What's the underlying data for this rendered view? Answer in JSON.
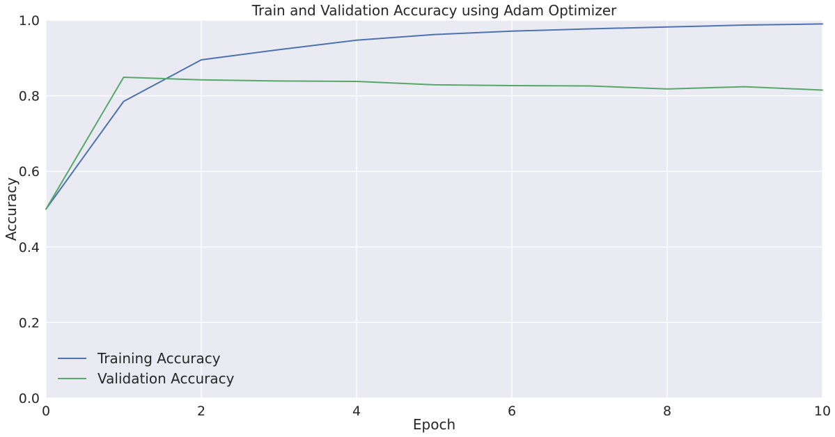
{
  "chart_data": {
    "type": "line",
    "title": "Train and Validation Accuracy using Adam Optimizer",
    "xlabel": "Epoch",
    "ylabel": "Accuracy",
    "xlim": [
      0,
      10
    ],
    "ylim": [
      0.0,
      1.0
    ],
    "xticks": [
      "0",
      "2",
      "4",
      "6",
      "8",
      "10"
    ],
    "yticks": [
      "0.0",
      "0.2",
      "0.4",
      "0.6",
      "0.8",
      "1.0"
    ],
    "grid": true,
    "legend_position": "lower-left",
    "x": [
      0,
      1,
      2,
      3,
      4,
      5,
      6,
      7,
      8,
      9,
      10
    ],
    "series": [
      {
        "name": "Training Accuracy",
        "color": "#4c72b0",
        "values": [
          0.5,
          0.785,
          0.895,
          0.922,
          0.947,
          0.962,
          0.971,
          0.977,
          0.982,
          0.987,
          0.99
        ]
      },
      {
        "name": "Validation Accuracy",
        "color": "#55a868",
        "values": [
          0.5,
          0.849,
          0.842,
          0.839,
          0.838,
          0.829,
          0.827,
          0.826,
          0.818,
          0.824,
          0.815
        ]
      }
    ],
    "colors": {
      "plot_background": "#eaeaf2",
      "grid": "#ffffff",
      "text": "#262626"
    }
  }
}
